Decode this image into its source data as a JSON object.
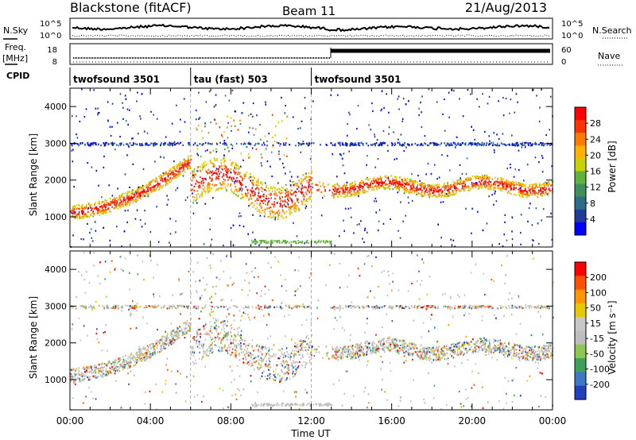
{
  "header": {
    "station": "Blackstone (fitACF)",
    "beam": "Beam 11",
    "date": "21/Aug/2013"
  },
  "top_panels": {
    "nsky_label": "N.Sky",
    "nsearch_label": "N.Search",
    "noise_ticks": [
      "10^5",
      "10^0"
    ],
    "freq_label_1": "Freq.",
    "freq_label_2": "[MHz]",
    "freq_ticks": [
      "18",
      "8"
    ],
    "nave_label": "Nave",
    "nave_ticks": [
      "60",
      "0"
    ],
    "cpid_label": "CPID"
  },
  "cpid_segments": [
    {
      "name": "twofsound 3501",
      "start_h": 0,
      "end_h": 6
    },
    {
      "name": "tau (fast) 503",
      "start_h": 6,
      "end_h": 12
    },
    {
      "name": "twofsound 3501",
      "start_h": 12,
      "end_h": 24
    }
  ],
  "colors": {
    "power_scale": [
      "#0000ff",
      "#1e3c9a",
      "#2e6d8a",
      "#3f8f5c",
      "#5fb33a",
      "#c8d200",
      "#ffb300",
      "#ff7a00",
      "#ff3300",
      "#ff0000"
    ],
    "velocity_scale": [
      "#2040c0",
      "#3c78c8",
      "#3fa05a",
      "#8cc850",
      "#bebebe",
      "#c8c8c8",
      "#e8c800",
      "#ff9600",
      "#ff5000",
      "#ff0000"
    ]
  },
  "chart_data": [
    {
      "type": "heatmap",
      "name": "power",
      "ylabel": "Slant Range [km]",
      "xlabel": "Time UT",
      "x_ticks": [
        "00:00",
        "04:00",
        "08:00",
        "12:00",
        "16:00",
        "20:00",
        "00:00"
      ],
      "x_range_hours": [
        0,
        24
      ],
      "ylim": [
        180,
        4500
      ],
      "y_ticks": [
        1000,
        2000,
        3000,
        4000
      ],
      "colorbar": {
        "label": "Power [dB]",
        "ticks": [
          "4",
          "8",
          "12",
          "16",
          "20",
          "24",
          "28"
        ],
        "range": [
          0,
          30
        ]
      },
      "scatter_bands": [
        {
          "hours": [
            0,
            6
          ],
          "range_km": [
            1050,
            2500
          ],
          "description": "main band rising"
        },
        {
          "hours": [
            6.3,
            12
          ],
          "range_km": [
            1300,
            3800
          ],
          "description": "dispersed returns"
        },
        {
          "hours": [
            13,
            24
          ],
          "range_km": [
            1400,
            2300
          ],
          "description": "steady band"
        }
      ]
    },
    {
      "type": "heatmap",
      "name": "velocity",
      "ylabel": "Slant Range [km]",
      "xlabel": "Time UT",
      "x_ticks": [
        "00:00",
        "04:00",
        "08:00",
        "12:00",
        "16:00",
        "20:00",
        "00:00"
      ],
      "x_range_hours": [
        0,
        24
      ],
      "ylim": [
        180,
        4500
      ],
      "y_ticks": [
        1000,
        2000,
        3000,
        4000
      ],
      "colorbar": {
        "label": "Velocity [m s⁻¹]",
        "ticks": [
          "200",
          "100",
          "50",
          "15",
          "-15",
          "-50",
          "-100",
          "-200"
        ],
        "range": [
          -250,
          250
        ]
      }
    }
  ],
  "footer": {
    "xlabel": "Time UT"
  }
}
